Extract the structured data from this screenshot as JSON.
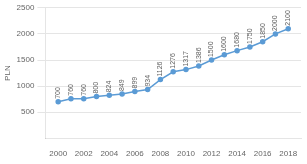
{
  "chart_data": {
    "type": "line",
    "x": [
      2000,
      2001,
      2002,
      2003,
      2004,
      2005,
      2006,
      2007,
      2008,
      2009,
      2010,
      2011,
      2012,
      2013,
      2014,
      2015,
      2016,
      2017,
      2018
    ],
    "values": [
      700,
      760,
      760,
      800,
      824,
      849,
      899,
      934,
      1126,
      1276,
      1317,
      1386,
      1500,
      1600,
      1680,
      1750,
      1850,
      2000,
      2100
    ],
    "color": "#5b9bd5",
    "marker": "o",
    "ylabel": "PLN",
    "xlim": [
      1999,
      2019
    ],
    "ylim": [
      0,
      2500
    ],
    "xticks": [
      2000,
      2002,
      2004,
      2006,
      2008,
      2010,
      2012,
      2014,
      2016,
      2018
    ],
    "yticks": [
      500,
      1000,
      1500,
      2000,
      2500
    ],
    "grid": true,
    "data_labels": true
  }
}
